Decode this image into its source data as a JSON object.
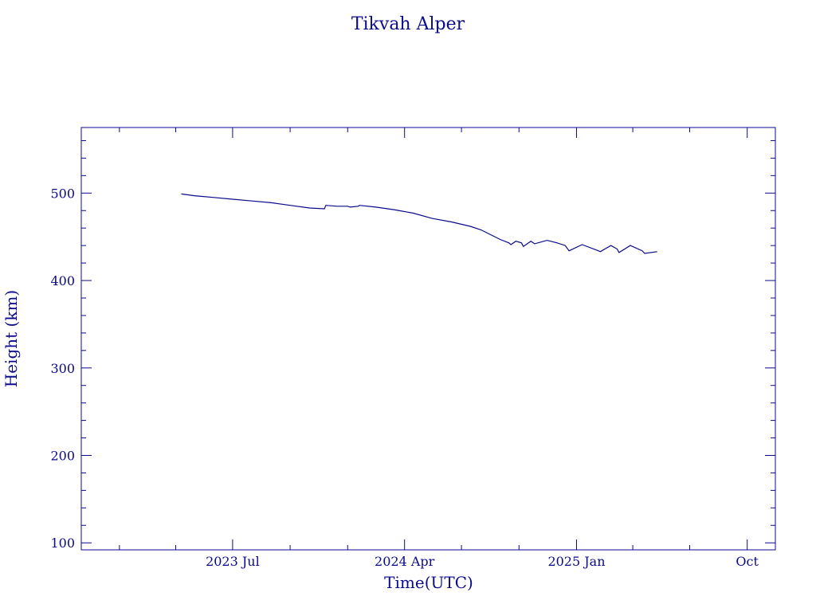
{
  "chart_data": {
    "type": "line",
    "title": "Tikvah Alper",
    "xlabel": "Time(UTC)",
    "ylabel": "Height (km)",
    "xlim": [
      "2022-11-01",
      "2025-11-15"
    ],
    "ylim": [
      92,
      575
    ],
    "x_ticks": [
      {
        "date": "2023-07-01",
        "label": "2023 Jul"
      },
      {
        "date": "2024-04-01",
        "label": "2024 Apr"
      },
      {
        "date": "2025-01-01",
        "label": "2025 Jan"
      },
      {
        "date": "2025-10-01",
        "label": "Oct"
      }
    ],
    "y_ticks": [
      100,
      200,
      300,
      400,
      500
    ],
    "grid": false,
    "series": [
      {
        "x": [
          "2023-04-10",
          "2023-05-01",
          "2023-06-01",
          "2023-07-01",
          "2023-08-01",
          "2023-09-01",
          "2023-10-01",
          "2023-11-01",
          "2023-11-25",
          "2023-11-27",
          "2023-12-15",
          "2024-01-01",
          "2024-01-05",
          "2024-01-18",
          "2024-01-20",
          "2024-02-15",
          "2024-03-15",
          "2024-04-15",
          "2024-05-15",
          "2024-06-15",
          "2024-07-15",
          "2024-08-01",
          "2024-08-15",
          "2024-09-01",
          "2024-09-15",
          "2024-09-18",
          "2024-09-26",
          "2024-10-05",
          "2024-10-08",
          "2024-10-20",
          "2024-10-26",
          "2024-11-15",
          "2024-12-01",
          "2024-12-14",
          "2024-12-20",
          "2025-01-10",
          "2025-02-05",
          "2025-02-08",
          "2025-02-25",
          "2025-03-07",
          "2025-03-10",
          "2025-03-28",
          "2025-04-16",
          "2025-04-20",
          "2025-05-10"
        ],
        "y": [
          499,
          497,
          495,
          493,
          491,
          489,
          486,
          483,
          482,
          486,
          485,
          485,
          484,
          485,
          486,
          484,
          481,
          477,
          471,
          467,
          462,
          458,
          453,
          447,
          443,
          441,
          445,
          443,
          439,
          445,
          442,
          446,
          443,
          440,
          434,
          441,
          434,
          433,
          440,
          436,
          432,
          440,
          434,
          431,
          433
        ]
      }
    ]
  }
}
